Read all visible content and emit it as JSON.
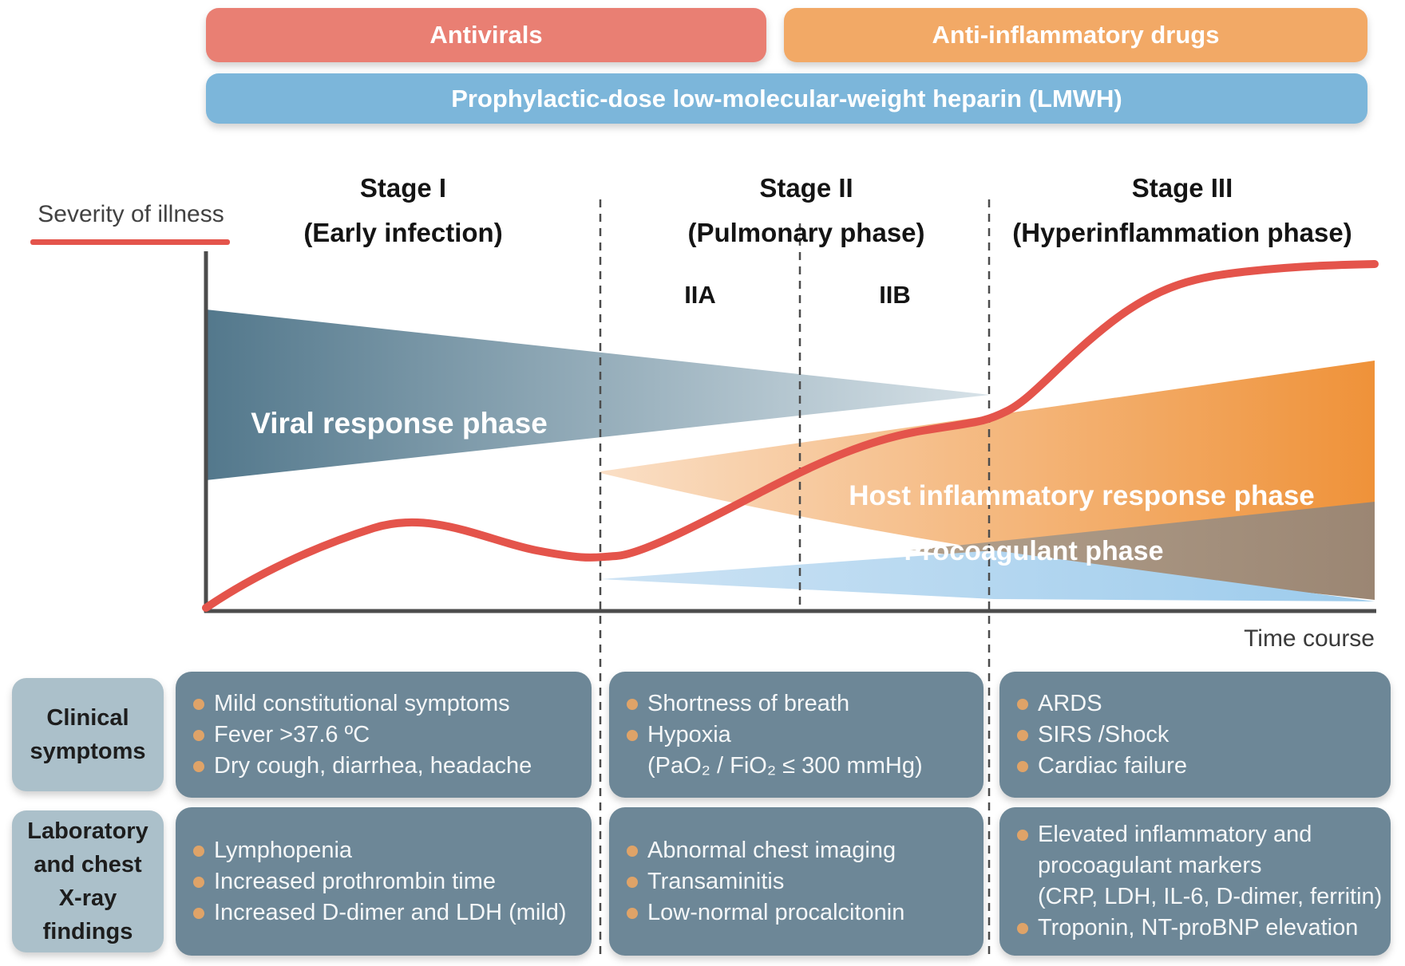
{
  "treatment_bars": {
    "antivirals": "Antivirals",
    "anti_inflammatory": "Anti-inflammatory drugs",
    "lmwh": "Prophylactic-dose low-molecular-weight heparin (LMWH)"
  },
  "axes": {
    "y_label": "Severity of illness",
    "x_label": "Time course"
  },
  "stages": [
    {
      "name": "Stage I",
      "subtitle": "(Early infection)"
    },
    {
      "name": "Stage II",
      "subtitle": "(Pulmonary phase)",
      "sub_stages": [
        "IIA",
        "IIB"
      ]
    },
    {
      "name": "Stage III",
      "subtitle": "(Hyperinflammation phase)"
    }
  ],
  "phases": [
    {
      "label": "Viral response phase"
    },
    {
      "label": "Host inflammatory response phase"
    },
    {
      "label": "Procoagulant phase"
    }
  ],
  "table": {
    "row_labels": [
      [
        "Clinical",
        "symptoms"
      ],
      [
        "Laboratory",
        "and chest",
        "X-ray",
        "findings"
      ]
    ],
    "clinical_symptoms": {
      "stage1": [
        [
          "Mild constitutional symptoms"
        ],
        [
          "Fever >37.6 ºC"
        ],
        [
          "Dry cough, diarrhea, headache"
        ]
      ],
      "stage2": [
        [
          "Shortness of breath"
        ],
        [
          "Hypoxia",
          "(PaO₂ / FiO₂ ≤ 300 mmHg)"
        ]
      ],
      "stage3": [
        [
          "ARDS"
        ],
        [
          "SIRS /Shock"
        ],
        [
          "Cardiac failure"
        ]
      ]
    },
    "lab_findings": {
      "stage1": [
        [
          "Lymphopenia"
        ],
        [
          "Increased prothrombin time"
        ],
        [
          "Increased D-dimer and LDH (mild)"
        ]
      ],
      "stage2": [
        [
          "Abnormal chest imaging"
        ],
        [
          "Transaminitis"
        ],
        [
          "Low-normal procalcitonin"
        ]
      ],
      "stage3": [
        [
          "Elevated inflammatory and",
          "procoagulant markers",
          "(CRP, LDH, IL-6, D-dimer, ferritin)"
        ],
        [
          "Troponin, NT-proBNP elevation"
        ]
      ]
    }
  },
  "colors": {
    "antivirals": "#e97f73",
    "antiinflam": "#f2a966",
    "lmwh": "#7cb6da",
    "curve": "#e4544b",
    "axis": "#4c4c4c",
    "viral-dark": "#53788c",
    "viral-light": "#d7e2e8",
    "host-light": "#fadfc6",
    "host-dark": "#ef9239",
    "brown-light": "#b2a08c",
    "brown-dark": "#9b8673",
    "procoag-light": "#cde3f4",
    "procoag-dark": "#9ccbec",
    "label-box": "#abc0ca",
    "content-box": "#6d8797",
    "bullet": "#dfa368"
  }
}
